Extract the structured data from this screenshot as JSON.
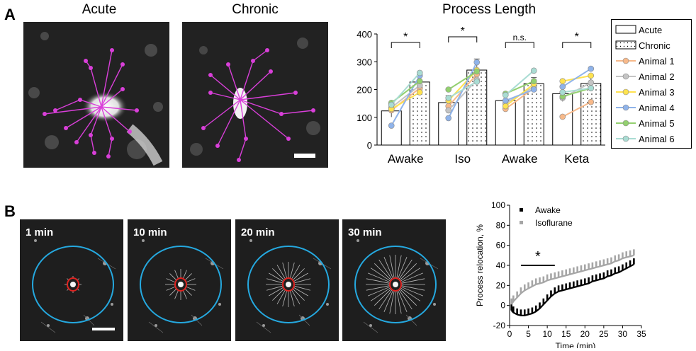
{
  "panel_a": {
    "letter": "A",
    "acute_title": "Acute",
    "chronic_title": "Chronic",
    "chart_title": "Process Length"
  },
  "panel_b": {
    "letter": "B",
    "time_labels": [
      "1 min",
      "10 min",
      "20 min",
      "30 min"
    ]
  },
  "chart_data": [
    {
      "type": "bar",
      "title": "Process Length",
      "groups": [
        "Awake",
        "Iso",
        "Awake",
        "Keta"
      ],
      "ylim": [
        0,
        400
      ],
      "yticks": [
        0,
        100,
        200,
        300,
        400
      ],
      "bar_series": [
        {
          "name": "Acute",
          "values": [
            123,
            153,
            160,
            185
          ],
          "errors": [
            22,
            25,
            20,
            28
          ]
        },
        {
          "name": "Chronic",
          "values": [
            227,
            270,
            221,
            222
          ],
          "errors": [
            20,
            40,
            22,
            28
          ]
        }
      ],
      "significance": [
        "*",
        "*",
        "n.s.",
        "*"
      ],
      "animals": [
        {
          "name": "Animal 1",
          "color": "#f7b98a",
          "acute": [
            125,
            140,
            130,
            102
          ],
          "chronic": [
            205,
            255,
            205,
            155
          ]
        },
        {
          "name": "Animal 2",
          "color": "#c4c4c4",
          "acute": [
            135,
            125,
            150,
            170
          ],
          "chronic": [
            215,
            235,
            210,
            225
          ]
        },
        {
          "name": "Animal 3",
          "color": "#ffe24f",
          "acute": [
            130,
            160,
            140,
            230
          ],
          "chronic": [
            190,
            270,
            220,
            250
          ]
        },
        {
          "name": "Animal 4",
          "color": "#8fb3ea",
          "acute": [
            70,
            97,
            160,
            210
          ],
          "chronic": [
            250,
            298,
            200,
            275
          ]
        },
        {
          "name": "Animal 5",
          "color": "#93d06f",
          "acute": [
            152,
            200,
            185,
            175
          ],
          "chronic": [
            230,
            265,
            230,
            205
          ]
        },
        {
          "name": "Animal 6",
          "color": "#a9dcd3",
          "acute": [
            145,
            170,
            180,
            190
          ],
          "chronic": [
            260,
            228,
            268,
            205
          ]
        }
      ],
      "legend": [
        "Acute",
        "Chronic",
        "Animal 1",
        "Animal 2",
        "Animal 3",
        "Animal 4",
        "Animal 5",
        "Animal 6"
      ]
    },
    {
      "type": "line",
      "xlabel": "Time (min)",
      "ylabel": "Process relocation, %",
      "xlim": [
        0,
        35
      ],
      "ylim": [
        -20,
        100
      ],
      "xticks": [
        0,
        5,
        10,
        15,
        20,
        25,
        30,
        35
      ],
      "yticks": [
        -20,
        0,
        20,
        40,
        60,
        80,
        100
      ],
      "annotation": "*",
      "annotation_span": [
        3,
        12
      ],
      "series": [
        {
          "name": "Awake",
          "color": "#000000",
          "x": [
            0.5,
            1,
            2,
            3,
            4,
            5,
            6,
            7,
            8,
            9,
            10,
            11,
            12,
            13,
            14,
            15,
            16,
            17,
            18,
            19,
            20,
            21,
            22,
            23,
            24,
            25,
            26,
            27,
            28,
            29,
            30,
            31,
            32,
            33
          ],
          "y": [
            -5,
            -7,
            -9,
            -10,
            -10,
            -9,
            -8,
            -6,
            -3,
            1,
            5,
            9,
            12,
            14,
            15,
            16,
            17,
            18,
            19,
            20,
            21,
            22,
            24,
            25,
            26,
            27,
            29,
            30,
            32,
            33,
            35,
            37,
            39,
            41
          ]
        },
        {
          "name": "Isoflurane",
          "color": "#a6a6a6",
          "x": [
            0.5,
            1,
            2,
            3,
            4,
            5,
            6,
            7,
            8,
            9,
            10,
            11,
            12,
            13,
            14,
            15,
            16,
            17,
            18,
            19,
            20,
            21,
            22,
            23,
            24,
            25,
            26,
            27,
            28,
            29,
            30,
            31,
            32,
            33
          ],
          "y": [
            1,
            4,
            8,
            12,
            15,
            17,
            19,
            21,
            22,
            23,
            25,
            26,
            27,
            28,
            29,
            30,
            31,
            32,
            33,
            34,
            35,
            36,
            37,
            38,
            39,
            40,
            41,
            42,
            44,
            45,
            47,
            48,
            49,
            50
          ]
        }
      ]
    }
  ]
}
